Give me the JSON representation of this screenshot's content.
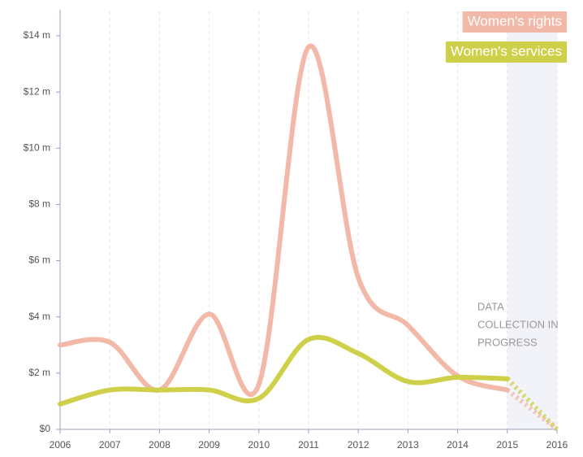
{
  "chart_data": {
    "type": "line",
    "x": [
      2006,
      2007,
      2008,
      2009,
      2010,
      2011,
      2012,
      2013,
      2014,
      2015,
      2016
    ],
    "series": [
      {
        "name": "Women's rights",
        "color": "#f2b8a8",
        "values": [
          3.0,
          3.1,
          1.4,
          4.1,
          1.6,
          13.6,
          5.4,
          3.7,
          1.9,
          1.4,
          0
        ]
      },
      {
        "name": "Women's services",
        "color": "#cfd04a",
        "values": [
          0.9,
          1.4,
          1.4,
          1.4,
          1.1,
          3.2,
          2.7,
          1.7,
          1.85,
          1.8,
          0
        ]
      }
    ],
    "xlim": [
      2006,
      2016
    ],
    "xticks": [
      2006,
      2007,
      2008,
      2009,
      2010,
      2011,
      2012,
      2013,
      2014,
      2015,
      2016
    ],
    "ylim": [
      0,
      14
    ],
    "yticks": [
      {
        "value": 0,
        "label": "$0"
      },
      {
        "value": 2,
        "label": "$2 m"
      },
      {
        "value": 4,
        "label": "$4 m"
      },
      {
        "value": 6,
        "label": "$6 m"
      },
      {
        "value": 8,
        "label": "$8 m"
      },
      {
        "value": 10,
        "label": "$10 m"
      },
      {
        "value": 12,
        "label": "$12 m"
      },
      {
        "value": 14,
        "label": "$14 m"
      }
    ],
    "grid": true,
    "legend": "top-right",
    "shaded_region": [
      2015,
      2016
    ],
    "annotation": [
      "DATA",
      "COLLECTION IN",
      "PROGRESS"
    ]
  }
}
